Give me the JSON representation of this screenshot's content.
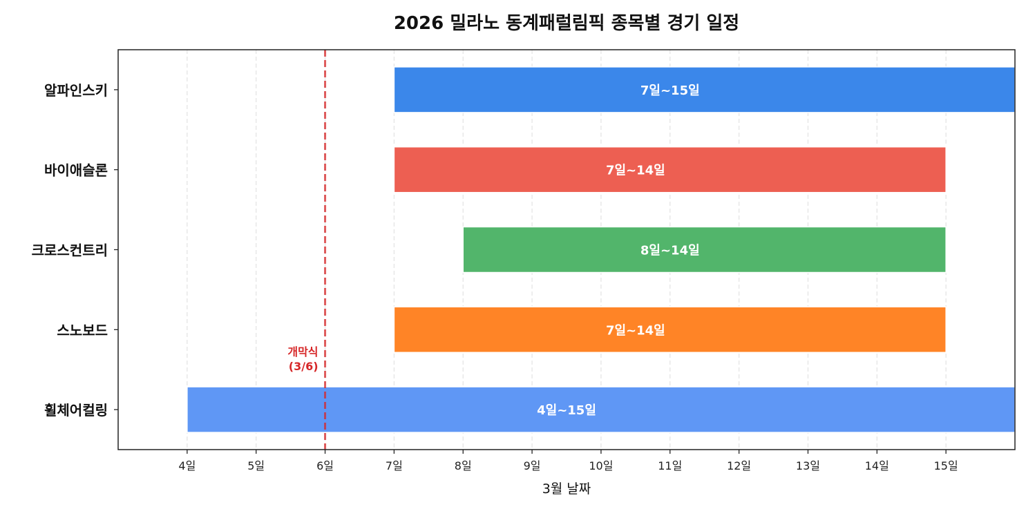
{
  "chart_data": {
    "type": "bar",
    "orientation": "horizontal",
    "title": "2026 밀라노 동계패럴림픽 종목별 경기 일정",
    "xlabel": "3월 날짜",
    "ylabel": "",
    "xlim": [
      3,
      16
    ],
    "x_ticks": [
      4,
      5,
      6,
      7,
      8,
      9,
      10,
      11,
      12,
      13,
      14,
      15
    ],
    "x_tick_labels": [
      "4일",
      "5일",
      "6일",
      "7일",
      "8일",
      "9일",
      "10일",
      "11일",
      "12일",
      "13일",
      "14일",
      "15일"
    ],
    "grid": "vertical dashed",
    "series": [
      {
        "category": "알파인스키",
        "start": 7,
        "end": 15,
        "label": "7일~15일",
        "color": "#3b87ea"
      },
      {
        "category": "바이애슬론",
        "start": 7,
        "end": 14,
        "label": "7일~14일",
        "color": "#ed5f52"
      },
      {
        "category": "크로스컨트리",
        "start": 8,
        "end": 14,
        "label": "8일~14일",
        "color": "#52b56b"
      },
      {
        "category": "스노보드",
        "start": 7,
        "end": 14,
        "label": "7일~14일",
        "color": "#ff8426"
      },
      {
        "category": "휠체어컬링",
        "start": 4,
        "end": 15,
        "label": "4일~15일",
        "color": "#5f97f5"
      }
    ],
    "annotation": {
      "x": 6,
      "lines": [
        "개막식",
        "(3/6)"
      ],
      "color": "#d62728"
    }
  }
}
